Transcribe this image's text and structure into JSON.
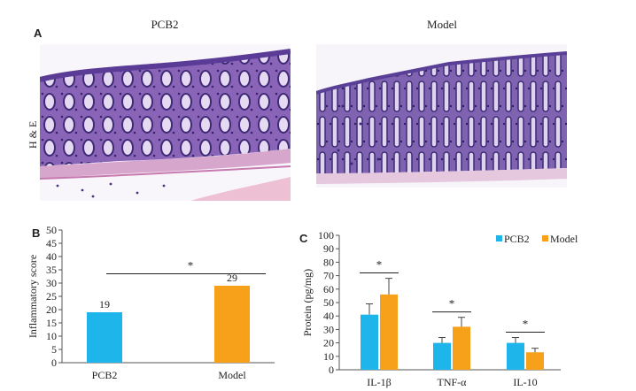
{
  "panel_a": {
    "label": "A",
    "side_label": "H & E",
    "images": [
      {
        "title": "PCB2"
      },
      {
        "title": "Model"
      }
    ]
  },
  "panel_b": {
    "label": "B"
  },
  "panel_c": {
    "label": "C"
  },
  "chart_data": [
    {
      "type": "bar",
      "categories": [
        "PCB2",
        "Model"
      ],
      "values": [
        19,
        29
      ],
      "value_labels": [
        "19",
        "29"
      ],
      "colors": [
        "#1eb6ea",
        "#f7a11a"
      ],
      "xlabel": "",
      "ylabel": "Inflammatory score",
      "ylim": [
        0,
        50
      ],
      "yticks": [
        "0",
        "5",
        "10",
        "15",
        "20",
        "25",
        "30",
        "35",
        "40",
        "45",
        "50"
      ],
      "annotation": "*",
      "grid": false
    },
    {
      "type": "bar",
      "categories": [
        "IL-1β",
        "TNF-α",
        "IL-10"
      ],
      "series": [
        {
          "name": "PCB2",
          "values": [
            41,
            20,
            20
          ],
          "errors": [
            8,
            4,
            4
          ],
          "color": "#1eb6ea"
        },
        {
          "name": "Model",
          "values": [
            56,
            32,
            13
          ],
          "errors": [
            12,
            7,
            3
          ],
          "color": "#f7a11a"
        }
      ],
      "xlabel": "",
      "ylabel": "Protein (pg/mg)",
      "ylim": [
        0,
        100
      ],
      "yticks": [
        "0",
        "10",
        "20",
        "30",
        "40",
        "50",
        "60",
        "70",
        "80",
        "90",
        "100"
      ],
      "annotations": [
        "*",
        "*",
        "*"
      ],
      "legend": "top-right",
      "grid": false
    }
  ]
}
